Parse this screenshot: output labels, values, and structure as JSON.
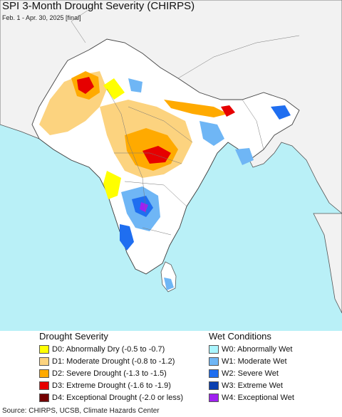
{
  "title": "SPI 3-Month Drought Severity (CHIRPS)",
  "subtitle": "Feb. 1 - Apr. 30, 2025 [final]",
  "colors": {
    "ocean": "#b9f0f7",
    "land": "#f2f2f2",
    "land_other": "#f0f0f0",
    "border": "#555555"
  },
  "legend": {
    "drought_title": "Drought Severity",
    "wet_title": "Wet Conditions",
    "drought": [
      {
        "label": "D0: Abnormally Dry (-0.5 to -0.7)",
        "color": "#ffff00"
      },
      {
        "label": "D1: Moderate Drought (-0.8 to -1.2)",
        "color": "#fcd37f"
      },
      {
        "label": "D2: Severe Drought (-1.3 to -1.5)",
        "color": "#ffaa00"
      },
      {
        "label": "D3: Extreme Drought (-1.6 to -1.9)",
        "color": "#e60000"
      },
      {
        "label": "D4: Exceptional Drought (-2.0 or less)",
        "color": "#730000"
      }
    ],
    "wet": [
      {
        "label": "W0: Abnormally Wet",
        "color": "#aaf5ff"
      },
      {
        "label": "W1: Moderate Wet",
        "color": "#6fb6f5"
      },
      {
        "label": "W2: Severe Wet",
        "color": "#1f6ef0"
      },
      {
        "label": "W3: Extreme Wet",
        "color": "#0a3fb0"
      },
      {
        "label": "W4: Exceptional Wet",
        "color": "#a020f0"
      }
    ]
  },
  "source": "Source: CHIRPS, UCSB, Climate Hazards Center"
}
